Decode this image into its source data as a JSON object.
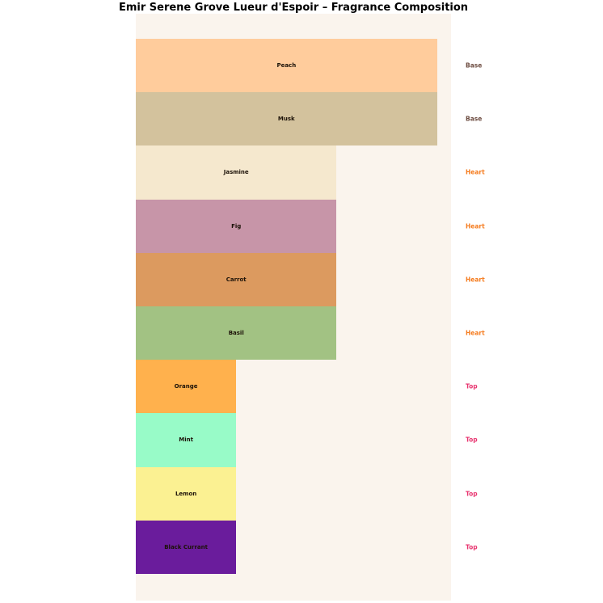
{
  "chart_data": {
    "type": "bar",
    "orientation": "horizontal",
    "title": "Emir Serene Grove Lueur d'Espoir – Fragrance Composition",
    "categories": [
      "Peach",
      "Musk",
      "Jasmine",
      "Fig",
      "Carrot",
      "Basil",
      "Orange",
      "Mint",
      "Lemon",
      "Black Currant"
    ],
    "values": [
      30,
      30,
      20,
      20,
      20,
      20,
      10,
      10,
      10,
      10
    ],
    "bar_colors": [
      "#FFCC9C",
      "#D3C29D",
      "#F5E8CE",
      "#C795A8",
      "#DC9A5F",
      "#A2C283",
      "#FFB14D",
      "#98FBC8",
      "#FBF192",
      "#6A1C9C"
    ],
    "note_types": [
      "Base",
      "Base",
      "Heart",
      "Heart",
      "Heart",
      "Heart",
      "Top",
      "Top",
      "Top",
      "Top"
    ],
    "note_type_colors": {
      "Base": "#6D4C41",
      "Heart": "#F57C1F",
      "Top": "#E8336E"
    },
    "xlim": [
      0,
      31.4
    ],
    "grid": false,
    "legend_position": "none",
    "plot_background": "#FAF4ED",
    "page_background": "#FFFFFF",
    "bar_label_color": "#1C1208",
    "title_color": "#000000"
  }
}
